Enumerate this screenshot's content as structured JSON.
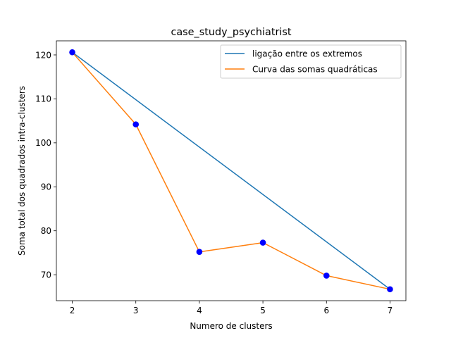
{
  "chart_data": {
    "type": "line",
    "title": "case_study_psychiatrist",
    "xlabel": "Numero de clusters",
    "ylabel": "Soma total dos quadrados intra-clusters",
    "xlim": [
      1.75,
      7.25
    ],
    "ylim": [
      64.1,
      123.2
    ],
    "xticks": [
      2,
      3,
      4,
      5,
      6,
      7
    ],
    "yticks": [
      70,
      80,
      90,
      100,
      110,
      120
    ],
    "grid": false,
    "legend_position": "top-right",
    "series": [
      {
        "name": "ligação entre os extremos",
        "color": "#1f77b4",
        "x": [
          2,
          7
        ],
        "y": [
          120.6,
          66.7
        ]
      },
      {
        "name": "Curva das somas quadráticas",
        "color": "#ff7f0e",
        "x": [
          2,
          3,
          4,
          5,
          6,
          7
        ],
        "y": [
          120.6,
          104.2,
          75.2,
          77.3,
          69.8,
          66.7
        ]
      }
    ],
    "points": {
      "color": "#0000ff",
      "x": [
        2,
        3,
        4,
        5,
        6,
        7
      ],
      "y": [
        120.6,
        104.2,
        75.2,
        77.3,
        69.8,
        66.7
      ]
    }
  }
}
